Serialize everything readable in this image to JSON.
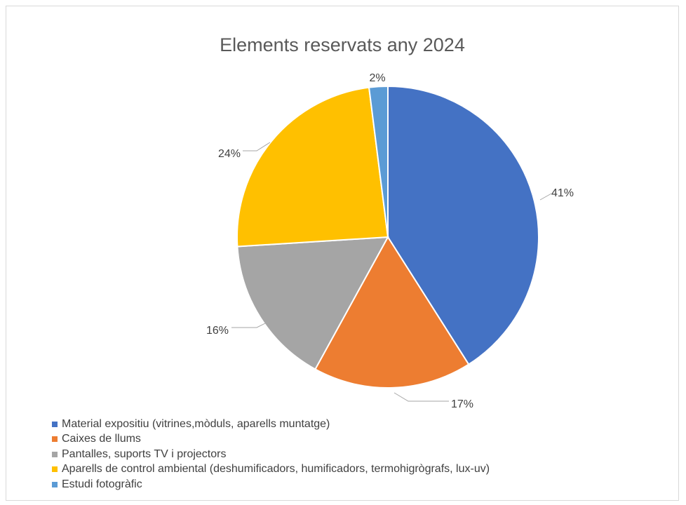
{
  "chart_data": {
    "type": "pie",
    "title": "Elements reservats any 2024",
    "slices": [
      {
        "name": "Material expositiu (vitrines,mòduls, aparells muntatge)",
        "value": 41,
        "label": "41%",
        "color": "#4472c4"
      },
      {
        "name": "Caixes de llums",
        "value": 17,
        "label": "17%",
        "color": "#ed7d31"
      },
      {
        "name": "Pantalles, suports TV i projectors",
        "value": 16,
        "label": "16%",
        "color": "#a5a5a5"
      },
      {
        "name": "Aparells de control ambiental (deshumificadors, humificadors, termohigrògrafs, lux-uv)",
        "value": 24,
        "label": "24%",
        "color": "#ffc000"
      },
      {
        "name": "Estudi fotogràfic",
        "value": 2,
        "label": "2%",
        "color": "#5b9bd5"
      }
    ],
    "legend_position": "bottom-left"
  }
}
